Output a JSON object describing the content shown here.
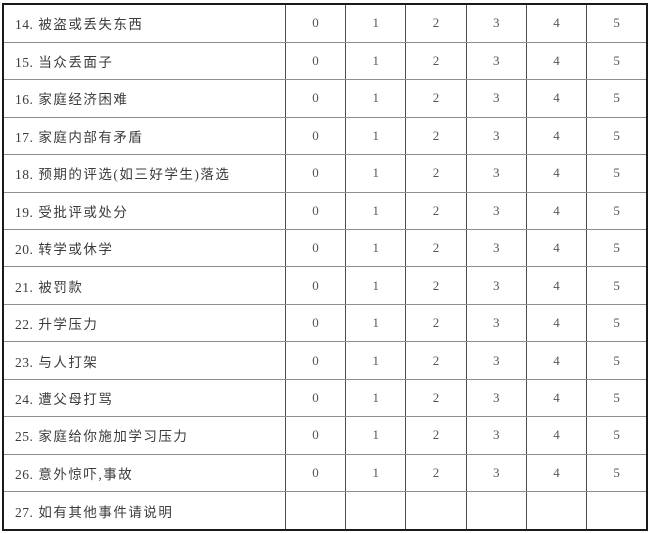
{
  "table": {
    "score_scale": [
      "0",
      "1",
      "2",
      "3",
      "4",
      "5"
    ],
    "rows": [
      {
        "num": "14.",
        "label": "被盗或丢失东西",
        "scores": [
          "0",
          "1",
          "2",
          "3",
          "4",
          "5"
        ]
      },
      {
        "num": "15.",
        "label": "当众丢面子",
        "scores": [
          "0",
          "1",
          "2",
          "3",
          "4",
          "5"
        ]
      },
      {
        "num": "16.",
        "label": "家庭经济困难",
        "scores": [
          "0",
          "1",
          "2",
          "3",
          "4",
          "5"
        ]
      },
      {
        "num": "17.",
        "label": "家庭内部有矛盾",
        "scores": [
          "0",
          "1",
          "2",
          "3",
          "4",
          "5"
        ]
      },
      {
        "num": "18.",
        "label": "预期的评选(如三好学生)落选",
        "scores": [
          "0",
          "1",
          "2",
          "3",
          "4",
          "5"
        ]
      },
      {
        "num": "19.",
        "label": "受批评或处分",
        "scores": [
          "0",
          "1",
          "2",
          "3",
          "4",
          "5"
        ]
      },
      {
        "num": "20.",
        "label": "转学或休学",
        "scores": [
          "0",
          "1",
          "2",
          "3",
          "4",
          "5"
        ]
      },
      {
        "num": "21.",
        "label": "被罚款",
        "scores": [
          "0",
          "1",
          "2",
          "3",
          "4",
          "5"
        ]
      },
      {
        "num": "22.",
        "label": "升学压力",
        "scores": [
          "0",
          "1",
          "2",
          "3",
          "4",
          "5"
        ]
      },
      {
        "num": "23.",
        "label": "与人打架",
        "scores": [
          "0",
          "1",
          "2",
          "3",
          "4",
          "5"
        ]
      },
      {
        "num": "24.",
        "label": "遭父母打骂",
        "scores": [
          "0",
          "1",
          "2",
          "3",
          "4",
          "5"
        ]
      },
      {
        "num": "25.",
        "label": "家庭给你施加学习压力",
        "scores": [
          "0",
          "1",
          "2",
          "3",
          "4",
          "5"
        ]
      },
      {
        "num": "26.",
        "label": "意外惊吓,事故",
        "scores": [
          "0",
          "1",
          "2",
          "3",
          "4",
          "5"
        ]
      },
      {
        "num": "27.",
        "label": "如有其他事件请说明",
        "scores": [
          "",
          "",
          "",
          "",
          "",
          ""
        ]
      }
    ]
  },
  "colors": {
    "page_background": "#ffffff",
    "outer_border": "#1a1a1a",
    "vertical_grid": "#4e4e4e",
    "horizontal_grid": "#8e8e8e",
    "label_text": "#3c3c3c",
    "score_text": "#565656"
  }
}
